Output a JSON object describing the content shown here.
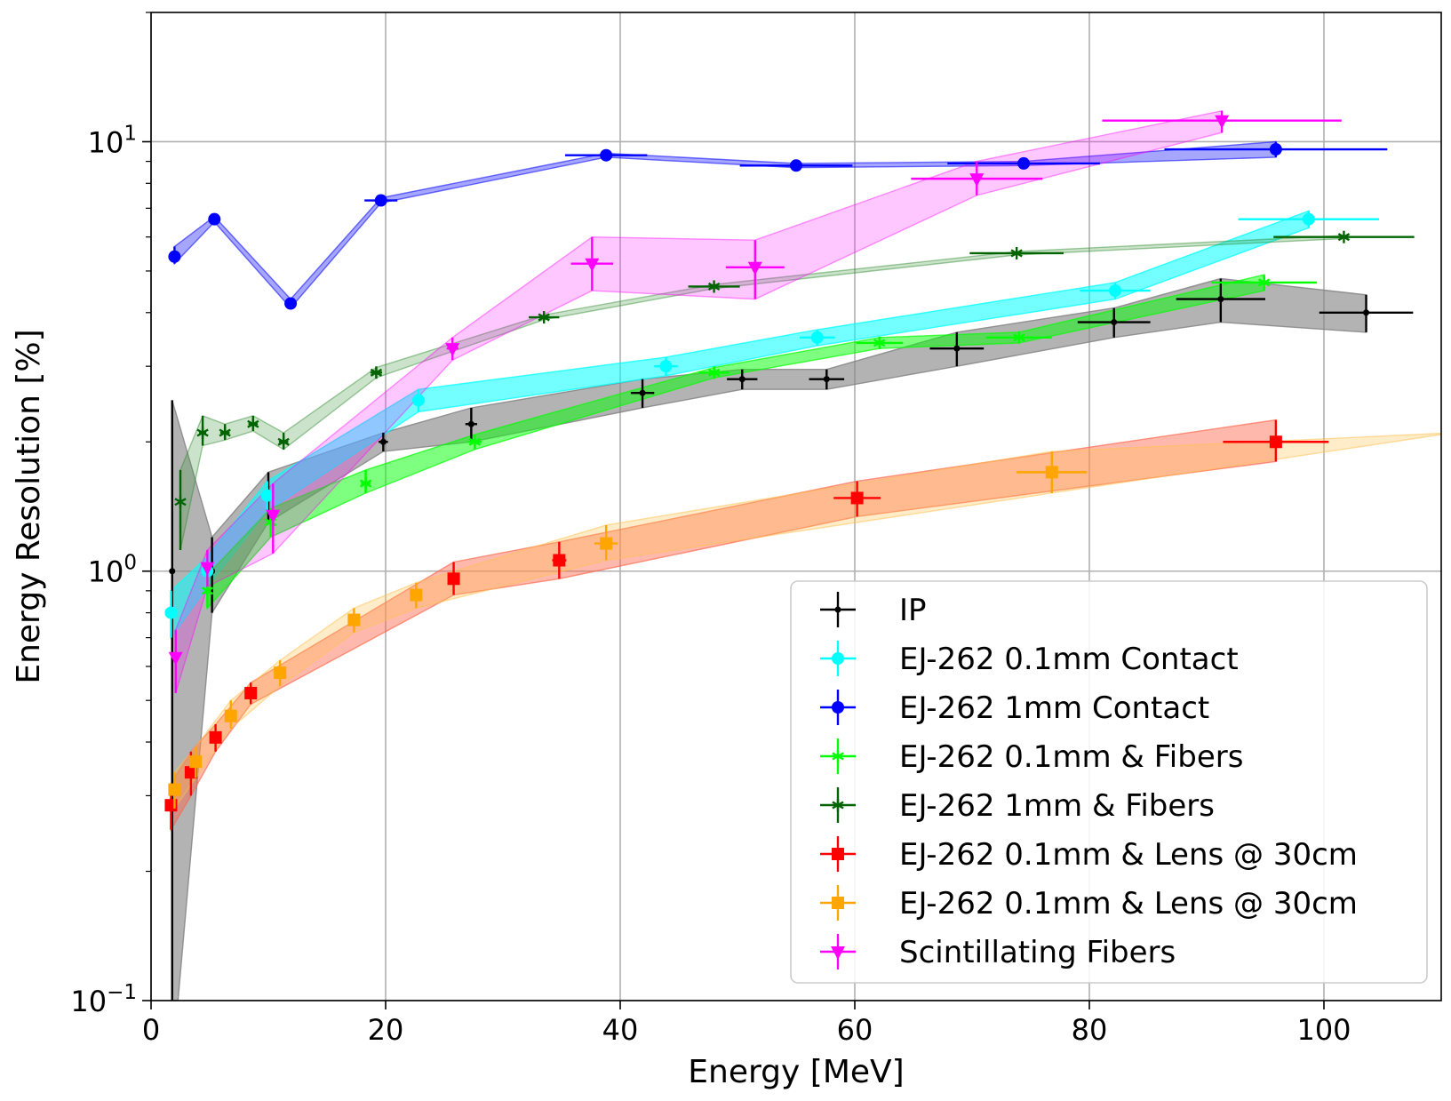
{
  "chart_data": {
    "type": "scatter",
    "title": "",
    "xlabel": "Energy [MeV]",
    "ylabel": "Energy Resolution [%]",
    "xlim": [
      0,
      110
    ],
    "ylim": [
      0.1,
      20
    ],
    "yscale": "log",
    "grid": true,
    "legend_position": "lower-right",
    "x_ticks": [
      {
        "v": 0,
        "label": "0"
      },
      {
        "v": 20,
        "label": "20"
      },
      {
        "v": 40,
        "label": "40"
      },
      {
        "v": 60,
        "label": "60"
      },
      {
        "v": 80,
        "label": "80"
      },
      {
        "v": 100,
        "label": "100"
      }
    ],
    "y_ticks": [
      {
        "v": 0.1,
        "base": "10",
        "exp": "−1"
      },
      {
        "v": 1,
        "base": "10",
        "exp": "0"
      },
      {
        "v": 10,
        "base": "10",
        "exp": "1"
      }
    ],
    "series": [
      {
        "name": "IP",
        "color": "#000000",
        "marker": "dot",
        "band_color": "#808080",
        "band_opacity": 0.6,
        "points": [
          {
            "x": 1.8,
            "y": 1.0,
            "xerr": 0.2,
            "ylo": 0.07,
            "yhi": 2.5
          },
          {
            "x": 5.2,
            "y": 1.0,
            "xerr": 0.2,
            "ylo": 0.8,
            "yhi": 1.2
          },
          {
            "x": 10.0,
            "y": 1.5,
            "xerr": 0.3,
            "ylo": 1.3,
            "yhi": 1.7
          },
          {
            "x": 19.8,
            "y": 2.0,
            "xerr": 0.4,
            "ylo": 1.9,
            "yhi": 2.1
          },
          {
            "x": 27.3,
            "y": 2.2,
            "xerr": 0.5,
            "ylo": 2.0,
            "yhi": 2.4
          },
          {
            "x": 41.9,
            "y": 2.6,
            "xerr": 1.0,
            "ylo": 2.4,
            "yhi": 2.8
          },
          {
            "x": 50.4,
            "y": 2.8,
            "xerr": 1.3,
            "ylo": 2.65,
            "yhi": 2.95
          },
          {
            "x": 57.6,
            "y": 2.8,
            "xerr": 1.5,
            "ylo": 2.65,
            "yhi": 2.95
          },
          {
            "x": 68.7,
            "y": 3.3,
            "xerr": 2.3,
            "ylo": 3.0,
            "yhi": 3.6
          },
          {
            "x": 82.1,
            "y": 3.8,
            "xerr": 3.1,
            "ylo": 3.5,
            "yhi": 4.1
          },
          {
            "x": 91.2,
            "y": 4.3,
            "xerr": 3.8,
            "ylo": 3.8,
            "yhi": 4.8
          },
          {
            "x": 103.6,
            "y": 4.0,
            "xerr": 4.0,
            "ylo": 3.6,
            "yhi": 4.4
          }
        ]
      },
      {
        "name": "EJ-262 0.1mm Contact",
        "color": "#00ffff",
        "marker": "circle",
        "band_color": "#00ffff",
        "band_opacity": 0.55,
        "points": [
          {
            "x": 1.7,
            "y": 0.8,
            "xerr": 0.1,
            "ylo": 0.7,
            "yhi": 0.9
          },
          {
            "x": 4.8,
            "y": 1.0,
            "xerr": 0.2,
            "ylo": 0.92,
            "yhi": 1.08
          },
          {
            "x": 9.9,
            "y": 1.5,
            "xerr": 0.3,
            "ylo": 1.38,
            "yhi": 1.62
          },
          {
            "x": 22.8,
            "y": 2.5,
            "xerr": 0.3,
            "ylo": 2.35,
            "yhi": 2.65
          },
          {
            "x": 43.9,
            "y": 3.0,
            "xerr": 1.0,
            "ylo": 2.85,
            "yhi": 3.15
          },
          {
            "x": 56.8,
            "y": 3.5,
            "xerr": 1.5,
            "ylo": 3.35,
            "yhi": 3.65
          },
          {
            "x": 82.2,
            "y": 4.5,
            "xerr": 3.0,
            "ylo": 4.3,
            "yhi": 4.7
          },
          {
            "x": 98.7,
            "y": 6.6,
            "xerr": 6.0,
            "ylo": 6.3,
            "yhi": 6.9
          }
        ]
      },
      {
        "name": "EJ-262 1mm Contact",
        "color": "#0000ff",
        "marker": "circle",
        "band_color": "#0000ff",
        "band_opacity": 0.35,
        "points": [
          {
            "x": 2.0,
            "y": 5.4,
            "xerr": 0.2,
            "ylo": 5.2,
            "yhi": 5.7
          },
          {
            "x": 5.4,
            "y": 6.6,
            "xerr": 0.2,
            "ylo": 6.5,
            "yhi": 6.7
          },
          {
            "x": 11.9,
            "y": 4.2,
            "xerr": 0.2,
            "ylo": 4.1,
            "yhi": 4.3
          },
          {
            "x": 19.6,
            "y": 7.3,
            "xerr": 1.4,
            "ylo": 7.2,
            "yhi": 7.4
          },
          {
            "x": 38.8,
            "y": 9.3,
            "xerr": 3.5,
            "ylo": 9.2,
            "yhi": 9.4
          },
          {
            "x": 55.0,
            "y": 8.8,
            "xerr": 4.8,
            "ylo": 8.7,
            "yhi": 8.9
          },
          {
            "x": 74.4,
            "y": 8.9,
            "xerr": 6.5,
            "ylo": 8.8,
            "yhi": 9.0
          },
          {
            "x": 95.9,
            "y": 9.6,
            "xerr": 9.5,
            "ylo": 9.2,
            "yhi": 10.0
          }
        ]
      },
      {
        "name": "EJ-262 0.1mm & Fibers",
        "color": "#00ff00",
        "marker": "star",
        "band_color": "#00ff00",
        "band_opacity": 0.5,
        "points": [
          {
            "x": 4.8,
            "y": 0.9,
            "xerr": 0.2,
            "ylo": 0.82,
            "yhi": 0.98
          },
          {
            "x": 10.2,
            "y": 1.3,
            "xerr": 0.3,
            "ylo": 1.2,
            "yhi": 1.4
          },
          {
            "x": 18.3,
            "y": 1.6,
            "xerr": 0.4,
            "ylo": 1.52,
            "yhi": 1.72
          },
          {
            "x": 27.6,
            "y": 2.0,
            "xerr": 0.6,
            "ylo": 1.92,
            "yhi": 2.08
          },
          {
            "x": 48.0,
            "y": 2.9,
            "xerr": 1.3,
            "ylo": 2.82,
            "yhi": 2.98
          },
          {
            "x": 62.1,
            "y": 3.4,
            "xerr": 2.0,
            "ylo": 3.3,
            "yhi": 3.5
          },
          {
            "x": 74.0,
            "y": 3.5,
            "xerr": 2.8,
            "ylo": 3.4,
            "yhi": 3.6
          },
          {
            "x": 94.9,
            "y": 4.7,
            "xerr": 4.5,
            "ylo": 4.5,
            "yhi": 4.9
          }
        ]
      },
      {
        "name": "EJ-262 1mm & Fibers",
        "color": "#006400",
        "marker": "star",
        "band_color": "#2e8b2e",
        "band_opacity": 0.25,
        "points": [
          {
            "x": 2.5,
            "y": 1.45,
            "xerr": 0.2,
            "ylo": 1.12,
            "yhi": 1.72
          },
          {
            "x": 4.4,
            "y": 2.1,
            "xerr": 0.3,
            "ylo": 1.96,
            "yhi": 2.3
          },
          {
            "x": 6.3,
            "y": 2.1,
            "xerr": 0.4,
            "ylo": 2.02,
            "yhi": 2.2
          },
          {
            "x": 8.7,
            "y": 2.2,
            "xerr": 0.4,
            "ylo": 2.12,
            "yhi": 2.3
          },
          {
            "x": 11.3,
            "y": 2.0,
            "xerr": 0.4,
            "ylo": 1.92,
            "yhi": 2.1
          },
          {
            "x": 19.2,
            "y": 2.9,
            "xerr": 0.5,
            "ylo": 2.82,
            "yhi": 2.98
          },
          {
            "x": 33.5,
            "y": 3.9,
            "xerr": 1.3,
            "ylo": 3.85,
            "yhi": 3.95
          },
          {
            "x": 48.0,
            "y": 4.6,
            "xerr": 2.2,
            "ylo": 4.55,
            "yhi": 4.65
          },
          {
            "x": 73.8,
            "y": 5.5,
            "xerr": 4.0,
            "ylo": 5.45,
            "yhi": 5.55
          },
          {
            "x": 101.7,
            "y": 6.0,
            "xerr": 6.0,
            "ylo": 5.95,
            "yhi": 6.05
          }
        ]
      },
      {
        "name": "EJ-262 0.1mm & Lens @ 30cm",
        "color": "#ff0000",
        "marker": "square",
        "band_color": "#ff6347",
        "band_opacity": 0.45,
        "points": [
          {
            "x": 1.7,
            "y": 0.285,
            "xerr": 0.1,
            "ylo": 0.25,
            "yhi": 0.32
          },
          {
            "x": 3.4,
            "y": 0.34,
            "xerr": 0.1,
            "ylo": 0.3,
            "yhi": 0.38
          },
          {
            "x": 5.5,
            "y": 0.41,
            "xerr": 0.2,
            "ylo": 0.38,
            "yhi": 0.44
          },
          {
            "x": 8.5,
            "y": 0.52,
            "xerr": 0.2,
            "ylo": 0.49,
            "yhi": 0.55
          },
          {
            "x": 25.8,
            "y": 0.96,
            "xerr": 0.3,
            "ylo": 0.88,
            "yhi": 1.05
          },
          {
            "x": 34.8,
            "y": 1.06,
            "xerr": 0.6,
            "ylo": 0.96,
            "yhi": 1.17
          },
          {
            "x": 60.2,
            "y": 1.48,
            "xerr": 2.0,
            "ylo": 1.34,
            "yhi": 1.62
          },
          {
            "x": 95.9,
            "y": 2.0,
            "xerr": 4.5,
            "ylo": 1.8,
            "yhi": 2.25
          }
        ]
      },
      {
        "name": "EJ-262 0.1mm & Lens @ 30cm",
        "color": "#ffa500",
        "marker": "square",
        "band_color": "#ffc04d",
        "band_opacity": 0.3,
        "points": [
          {
            "x": 2.0,
            "y": 0.31,
            "xerr": 0.1,
            "ylo": 0.28,
            "yhi": 0.34
          },
          {
            "x": 3.8,
            "y": 0.36,
            "xerr": 0.2,
            "ylo": 0.33,
            "yhi": 0.39
          },
          {
            "x": 6.8,
            "y": 0.46,
            "xerr": 0.2,
            "ylo": 0.43,
            "yhi": 0.5
          },
          {
            "x": 11.0,
            "y": 0.58,
            "xerr": 0.3,
            "ylo": 0.54,
            "yhi": 0.62
          },
          {
            "x": 17.3,
            "y": 0.77,
            "xerr": 0.4,
            "ylo": 0.72,
            "yhi": 0.82
          },
          {
            "x": 22.6,
            "y": 0.88,
            "xerr": 0.4,
            "ylo": 0.82,
            "yhi": 0.94
          },
          {
            "x": 38.8,
            "y": 1.16,
            "xerr": 1.0,
            "ylo": 1.06,
            "yhi": 1.28
          },
          {
            "x": 76.8,
            "y": 1.7,
            "xerr": 3.0,
            "ylo": 1.52,
            "yhi": 1.9
          },
          {
            "x": 111.0,
            "y": 2.1,
            "xerr": 0.0,
            "ylo": 2.1,
            "yhi": 2.1
          }
        ]
      },
      {
        "name": "Scintillating Fibers",
        "color": "#ff00ff",
        "marker": "triangle-down",
        "band_color": "#ff00ff",
        "band_opacity": 0.22,
        "points": [
          {
            "x": 2.1,
            "y": 0.63,
            "xerr": 0.1,
            "ylo": 0.52,
            "yhi": 0.73
          },
          {
            "x": 4.8,
            "y": 1.02,
            "xerr": 0.2,
            "ylo": 0.92,
            "yhi": 1.12
          },
          {
            "x": 10.4,
            "y": 1.35,
            "xerr": 0.3,
            "ylo": 1.1,
            "yhi": 1.6
          },
          {
            "x": 25.7,
            "y": 3.3,
            "xerr": 0.5,
            "ylo": 3.1,
            "yhi": 3.5
          },
          {
            "x": 37.6,
            "y": 5.2,
            "xerr": 1.8,
            "ylo": 4.5,
            "yhi": 6.0
          },
          {
            "x": 51.5,
            "y": 5.1,
            "xerr": 2.5,
            "ylo": 4.3,
            "yhi": 5.9
          },
          {
            "x": 70.4,
            "y": 8.2,
            "xerr": 5.6,
            "ylo": 7.5,
            "yhi": 9.0
          },
          {
            "x": 91.3,
            "y": 11.2,
            "xerr": 10.2,
            "ylo": 10.5,
            "yhi": 11.8
          }
        ]
      }
    ]
  }
}
